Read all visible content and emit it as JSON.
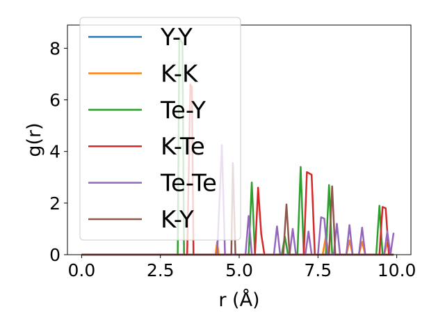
{
  "chart_data": {
    "type": "line",
    "xlabel": "r (Å)",
    "ylabel": "g(r)",
    "xlim": [
      -0.45,
      10.45
    ],
    "ylim": [
      0,
      8.9
    ],
    "xticks": [
      0.0,
      2.5,
      5.0,
      7.5,
      10.0
    ],
    "xtick_labels": [
      "0.0",
      "2.5",
      "5.0",
      "7.5",
      "10.0"
    ],
    "yticks": [
      0,
      2,
      4,
      6,
      8
    ],
    "ytick_labels": [
      "0",
      "2",
      "4",
      "6",
      "8"
    ],
    "grid": false,
    "legend_position": "upper-left",
    "series": [
      {
        "name": "Y-Y",
        "color": "#1f77b4",
        "points": [
          [
            0,
            0
          ],
          [
            9.9,
            0
          ]
        ]
      },
      {
        "name": "K-K",
        "color": "#ff7f0e",
        "points": [
          [
            0,
            0
          ],
          [
            4.25,
            0
          ],
          [
            4.3,
            0.5
          ],
          [
            4.35,
            0
          ],
          [
            7.65,
            0
          ],
          [
            7.75,
            0.7
          ],
          [
            7.85,
            0
          ],
          [
            8.4,
            0
          ],
          [
            8.5,
            0.55
          ],
          [
            8.6,
            0
          ],
          [
            8.8,
            0
          ],
          [
            8.9,
            0.5
          ],
          [
            9.0,
            0
          ],
          [
            9.6,
            0
          ],
          [
            9.7,
            0.45
          ],
          [
            9.8,
            0
          ],
          [
            9.9,
            0
          ]
        ]
      },
      {
        "name": "Te-Y",
        "color": "#2ca02c",
        "points": [
          [
            0,
            0
          ],
          [
            3.05,
            0
          ],
          [
            3.1,
            8.4
          ],
          [
            3.2,
            8.2
          ],
          [
            3.25,
            0
          ],
          [
            5.3,
            0
          ],
          [
            5.4,
            2.8
          ],
          [
            5.5,
            0
          ],
          [
            6.35,
            0
          ],
          [
            6.45,
            0.7
          ],
          [
            6.55,
            0
          ],
          [
            6.85,
            0
          ],
          [
            6.95,
            3.4
          ],
          [
            7.05,
            0
          ],
          [
            7.75,
            0
          ],
          [
            7.85,
            2.7
          ],
          [
            7.95,
            0
          ],
          [
            9.35,
            0
          ],
          [
            9.45,
            1.9
          ],
          [
            9.55,
            0
          ],
          [
            9.9,
            0
          ]
        ]
      },
      {
        "name": "K-Te",
        "color": "#d62728",
        "points": [
          [
            0,
            0
          ],
          [
            3.35,
            0
          ],
          [
            3.45,
            6.6
          ],
          [
            3.5,
            6.5
          ],
          [
            3.55,
            0
          ],
          [
            5.5,
            0
          ],
          [
            5.6,
            2.6
          ],
          [
            5.7,
            0.8
          ],
          [
            5.8,
            0
          ],
          [
            7.05,
            0
          ],
          [
            7.15,
            3.2
          ],
          [
            7.3,
            3.1
          ],
          [
            7.4,
            0
          ],
          [
            9.45,
            0
          ],
          [
            9.55,
            1.85
          ],
          [
            9.65,
            1.8
          ],
          [
            9.75,
            0
          ],
          [
            9.9,
            0
          ]
        ]
      },
      {
        "name": "Te-Te",
        "color": "#9467bd",
        "points": [
          [
            0,
            0
          ],
          [
            4.3,
            0
          ],
          [
            4.45,
            4.25
          ],
          [
            4.55,
            0
          ],
          [
            5.2,
            0
          ],
          [
            5.3,
            1.5
          ],
          [
            5.4,
            0
          ],
          [
            6.1,
            0
          ],
          [
            6.2,
            1.1
          ],
          [
            6.3,
            0
          ],
          [
            6.6,
            0
          ],
          [
            6.7,
            1.0
          ],
          [
            6.8,
            0
          ],
          [
            7.1,
            0
          ],
          [
            7.2,
            0.9
          ],
          [
            7.3,
            0
          ],
          [
            7.5,
            0
          ],
          [
            7.6,
            1.45
          ],
          [
            7.7,
            1.4
          ],
          [
            7.8,
            0
          ],
          [
            8.0,
            0
          ],
          [
            8.1,
            1.2
          ],
          [
            8.2,
            0
          ],
          [
            8.4,
            0
          ],
          [
            8.5,
            1.15
          ],
          [
            8.6,
            0
          ],
          [
            8.8,
            0
          ],
          [
            8.9,
            1.05
          ],
          [
            9.0,
            0
          ],
          [
            9.6,
            0
          ],
          [
            9.7,
            0.9
          ],
          [
            9.8,
            0
          ],
          [
            9.9,
            0.85
          ]
        ]
      },
      {
        "name": "K-Y",
        "color": "#8c564b",
        "points": [
          [
            0,
            0
          ],
          [
            4.75,
            0
          ],
          [
            4.8,
            3.55
          ],
          [
            4.88,
            0
          ],
          [
            6.4,
            0
          ],
          [
            6.5,
            1.95
          ],
          [
            6.6,
            0
          ],
          [
            7.85,
            0
          ],
          [
            7.95,
            2.65
          ],
          [
            8.05,
            0
          ],
          [
            9.9,
            0
          ]
        ]
      }
    ]
  }
}
